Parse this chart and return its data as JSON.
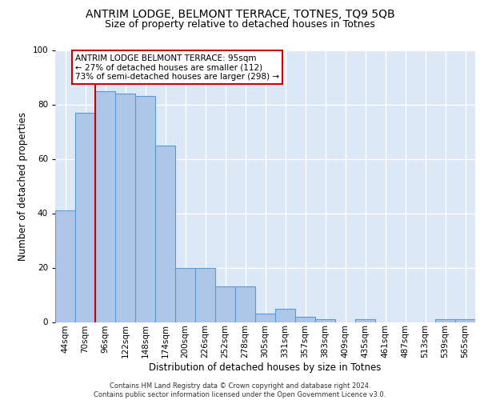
{
  "title1": "ANTRIM LODGE, BELMONT TERRACE, TOTNES, TQ9 5QB",
  "title2": "Size of property relative to detached houses in Totnes",
  "xlabel": "Distribution of detached houses by size in Totnes",
  "ylabel": "Number of detached properties",
  "categories": [
    "44sqm",
    "70sqm",
    "96sqm",
    "122sqm",
    "148sqm",
    "174sqm",
    "200sqm",
    "226sqm",
    "252sqm",
    "278sqm",
    "305sqm",
    "331sqm",
    "357sqm",
    "383sqm",
    "409sqm",
    "435sqm",
    "461sqm",
    "487sqm",
    "513sqm",
    "539sqm",
    "565sqm"
  ],
  "values": [
    41,
    77,
    85,
    84,
    83,
    65,
    20,
    20,
    13,
    13,
    3,
    5,
    2,
    1,
    0,
    1,
    0,
    0,
    0,
    1,
    1
  ],
  "bar_color": "#aec6e8",
  "bar_edge_color": "#5b9bd5",
  "vline_color": "#cc0000",
  "annotation_text": "ANTRIM LODGE BELMONT TERRACE: 95sqm\n← 27% of detached houses are smaller (112)\n73% of semi-detached houses are larger (298) →",
  "annotation_box_color": "#ffffff",
  "annotation_box_edge": "#cc0000",
  "ylim": [
    0,
    100
  ],
  "background_color": "#dce8f5",
  "footer_text": "Contains HM Land Registry data © Crown copyright and database right 2024.\nContains public sector information licensed under the Open Government Licence v3.0.",
  "grid_color": "#ffffff",
  "title_fontsize": 10,
  "subtitle_fontsize": 9,
  "tick_fontsize": 7.5,
  "label_fontsize": 8.5,
  "footer_fontsize": 6,
  "yticks": [
    0,
    20,
    40,
    60,
    80,
    100
  ]
}
